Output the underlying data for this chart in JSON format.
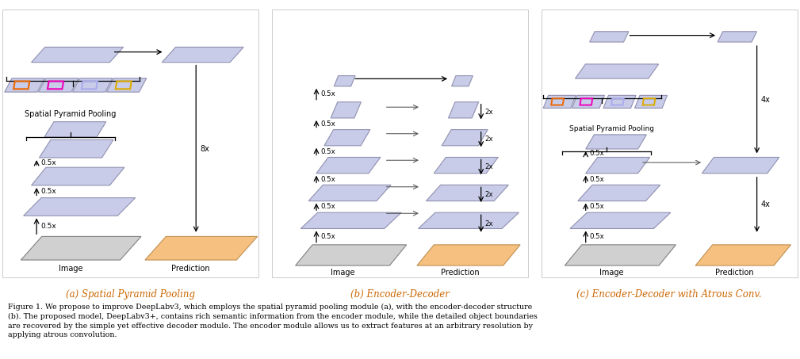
{
  "fig_width": 10.09,
  "fig_height": 4.53,
  "dpi": 100,
  "bg_color": "#ffffff",
  "blue_fill": "#c8cce8",
  "blue_edge": "#9090b0",
  "gray_fill": "#d0d0d0",
  "gray_edge": "#808080",
  "orange_fill": "#f5c080",
  "orange_edge": "#c09050",
  "caption_a": "(a) Spatial Pyramid Pooling",
  "caption_b": "(b) Encoder-Decoder",
  "caption_c": "(c) Encoder-Decoder with Atrous Conv.",
  "figure_caption": "Figure 1. We propose to improve DeepLabv3, which employs the spatial pyramid pooling module (a), with the encoder-decoder structure\n(b). The proposed model, DeepLabv3+, contains rich semantic information from the encoder module, while the detailed object boundaries\nare recovered by the simple yet effective decoder module. The encoder module allows us to extract features at an arbitrary resolution by\napplying atrous convolution.",
  "spp_label": "Spatial Pyramid Pooling",
  "spp_inner_colors": [
    "#ee6600",
    "#ee00bb",
    "#aaaaee",
    "#ddaa00"
  ]
}
